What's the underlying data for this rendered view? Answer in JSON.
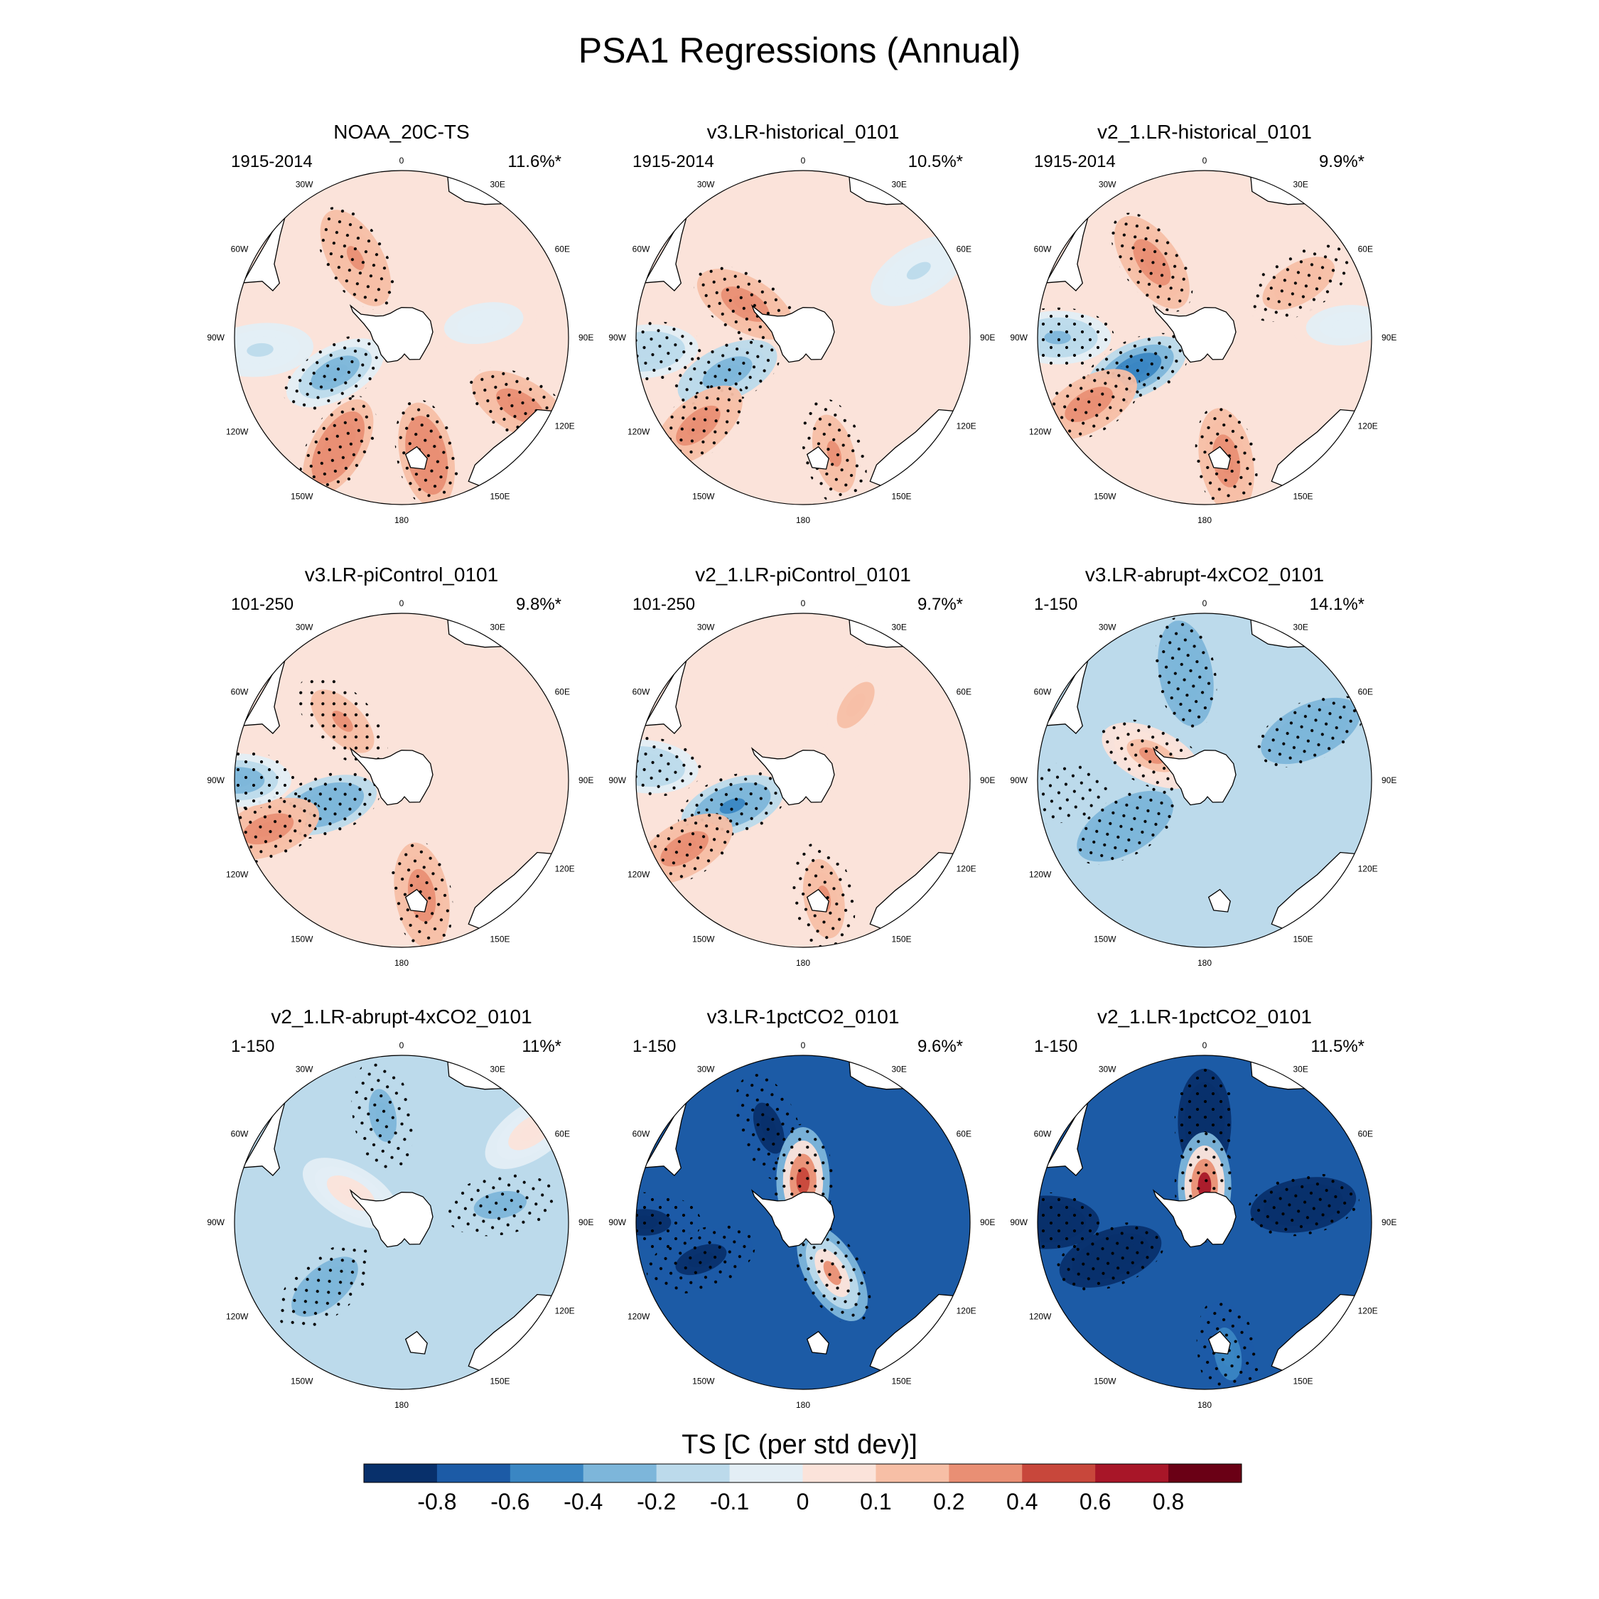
{
  "figure": {
    "title": "PSA1 Regressions (Annual)",
    "colorbar_label": "TS [C (per std dev)]"
  },
  "colors": {
    "levels": [
      "#08306b",
      "#1c5ba6",
      "#3a86c3",
      "#7db6da",
      "#bcdaeb",
      "#e3eef5",
      "#fbe3da",
      "#f7bfa6",
      "#e98f74",
      "#c8473b",
      "#a81628",
      "#6a0015"
    ],
    "land": "#ffffff",
    "coast": "#000000",
    "stipple": "#000000"
  },
  "chart_data": {
    "type": "polar contour map panels",
    "variable": "TS",
    "units": "C (per std dev)",
    "colorbar_ticks": [
      "-0.8",
      "-0.6",
      "-0.4",
      "-0.2",
      "-0.1",
      "0",
      "0.1",
      "0.2",
      "0.4",
      "0.6",
      "0.8"
    ],
    "lon_labels": [
      "0",
      "30E",
      "60E",
      "90E",
      "120E",
      "150E",
      "180",
      "150W",
      "120W",
      "90W",
      "60W",
      "30W"
    ],
    "panels": [
      {
        "name": "NOAA_20C-TS",
        "period": "1915-2014",
        "pct": "11.6%*",
        "mean": 0.05,
        "anomalies": [
          {
            "lon": -150,
            "r": 0.76,
            "v": 0.32
          },
          {
            "lon": 168,
            "r": 0.72,
            "v": 0.34
          },
          {
            "lon": -118,
            "r": 0.45,
            "v": -0.3
          },
          {
            "lon": -30,
            "r": 0.55,
            "v": 0.2
          },
          {
            "lon": 120,
            "r": 0.82,
            "v": 0.28
          },
          {
            "lon": 80,
            "r": 0.5,
            "v": -0.05
          },
          {
            "lon": -95,
            "r": 0.85,
            "v": -0.12
          }
        ]
      },
      {
        "name": "v3.LR-historical_0101",
        "period": "1915-2014",
        "pct": "10.5%*",
        "mean": 0.03,
        "anomalies": [
          {
            "lon": -115,
            "r": 0.5,
            "v": -0.35
          },
          {
            "lon": -130,
            "r": 0.82,
            "v": 0.3
          },
          {
            "lon": 165,
            "r": 0.72,
            "v": 0.22
          },
          {
            "lon": -60,
            "r": 0.4,
            "v": 0.3
          },
          {
            "lon": 60,
            "r": 0.8,
            "v": -0.12
          },
          {
            "lon": -95,
            "r": 0.95,
            "v": -0.2
          }
        ]
      },
      {
        "name": "v2_1.LR-historical_0101",
        "period": "1915-2014",
        "pct": "9.9%*",
        "mean": 0.03,
        "anomalies": [
          {
            "lon": -115,
            "r": 0.45,
            "v": -0.55
          },
          {
            "lon": -120,
            "r": 0.8,
            "v": 0.32
          },
          {
            "lon": 170,
            "r": 0.75,
            "v": 0.3
          },
          {
            "lon": -35,
            "r": 0.55,
            "v": 0.26
          },
          {
            "lon": 60,
            "r": 0.65,
            "v": 0.18
          },
          {
            "lon": -90,
            "r": 0.88,
            "v": -0.25
          },
          {
            "lon": 85,
            "r": 0.85,
            "v": -0.05
          }
        ]
      },
      {
        "name": "v3.LR-piControl_0101",
        "period": "101-250",
        "pct": "9.8%*",
        "mean": 0.02,
        "anomalies": [
          {
            "lon": -108,
            "r": 0.48,
            "v": -0.4
          },
          {
            "lon": -110,
            "r": 0.85,
            "v": 0.32
          },
          {
            "lon": 170,
            "r": 0.7,
            "v": 0.28
          },
          {
            "lon": -90,
            "r": 0.98,
            "v": -0.3
          },
          {
            "lon": -45,
            "r": 0.5,
            "v": 0.2
          }
        ]
      },
      {
        "name": "v2_1.LR-piControl_0101",
        "period": "101-250",
        "pct": "9.7%*",
        "mean": 0.02,
        "anomalies": [
          {
            "lon": -110,
            "r": 0.45,
            "v": -0.45
          },
          {
            "lon": -120,
            "r": 0.82,
            "v": 0.26
          },
          {
            "lon": 170,
            "r": 0.72,
            "v": 0.22
          },
          {
            "lon": -85,
            "r": 0.95,
            "v": -0.2
          },
          {
            "lon": 35,
            "r": 0.55,
            "v": 0.15
          }
        ]
      },
      {
        "name": "v3.LR-abrupt-4xCO2_0101",
        "period": "1-150",
        "pct": "14.1%*",
        "mean": -0.12,
        "anomalies": [
          {
            "lon": -120,
            "r": 0.55,
            "v": -0.4
          },
          {
            "lon": -10,
            "r": 0.65,
            "v": -0.35
          },
          {
            "lon": 65,
            "r": 0.7,
            "v": -0.35
          },
          {
            "lon": -65,
            "r": 0.35,
            "v": 0.25
          },
          {
            "lon": -95,
            "r": 0.9,
            "v": -0.2
          }
        ]
      },
      {
        "name": "v2_1.LR-abrupt-4xCO2_0101",
        "period": "1-150",
        "pct": "11%*",
        "mean": -0.12,
        "anomalies": [
          {
            "lon": -130,
            "r": 0.6,
            "v": -0.3
          },
          {
            "lon": -10,
            "r": 0.65,
            "v": -0.25
          },
          {
            "lon": 80,
            "r": 0.6,
            "v": -0.25
          },
          {
            "lon": -60,
            "r": 0.35,
            "v": 0.05
          },
          {
            "lon": 55,
            "r": 0.95,
            "v": 0.06
          }
        ]
      },
      {
        "name": "v3.LR-1pctCO2_0101",
        "period": "1-150",
        "pct": "9.6%*",
        "mean": -0.65,
        "anomalies": [
          {
            "lon": -110,
            "r": 0.65,
            "v": -0.85
          },
          {
            "lon": -20,
            "r": 0.6,
            "v": -0.9
          },
          {
            "lon": -90,
            "r": 0.95,
            "v": -0.85
          },
          {
            "lon": 0,
            "r": 0.25,
            "v": 0.55
          },
          {
            "lon": 150,
            "r": 0.35,
            "v": 0.3
          }
        ]
      },
      {
        "name": "v2_1.LR-1pctCO2_0101",
        "period": "1-150",
        "pct": "11.5%*",
        "mean": -0.8,
        "anomalies": [
          {
            "lon": -110,
            "r": 0.6,
            "v": -1.0
          },
          {
            "lon": 0,
            "r": 0.6,
            "v": -1.0
          },
          {
            "lon": 80,
            "r": 0.6,
            "v": -1.0
          },
          {
            "lon": -90,
            "r": 0.95,
            "v": -0.95
          },
          {
            "lon": 0,
            "r": 0.22,
            "v": 0.65
          },
          {
            "lon": 170,
            "r": 0.8,
            "v": -0.45
          }
        ]
      }
    ]
  }
}
